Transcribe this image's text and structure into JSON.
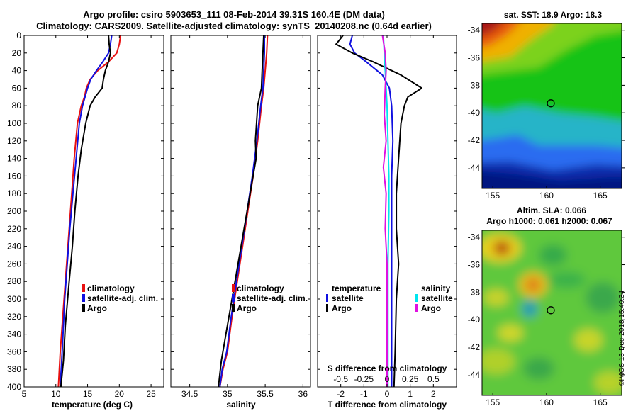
{
  "title_line1": "Argo profile: csiro 5903653_111 08-Feb-2014 39.31S 160.4E (DM data)",
  "title_line2": "Climatology: CARS2009. Satellite-adjusted climatology: synTS_20140208.nc (0.64d earlier)",
  "timestamp": "©IMOS 13-Dec-2018 15:40:34",
  "colors": {
    "climatology": "#e81010",
    "satellite": "#1010e0",
    "argo": "#000000",
    "satellite_s": "#00e5ee",
    "argo_s": "#e010e0"
  },
  "chart_data": [
    {
      "type": "line",
      "title": "",
      "xlabel": "temperature (deg C)",
      "ylabel": "",
      "xlim": [
        5,
        27
      ],
      "ylim": [
        400,
        0
      ],
      "xticks": [
        5,
        10,
        15,
        20,
        25
      ],
      "xtick_labels": [
        "5",
        "10",
        "15",
        "20",
        "25"
      ],
      "yticks": [
        0,
        20,
        40,
        60,
        80,
        100,
        120,
        140,
        160,
        180,
        200,
        220,
        240,
        260,
        280,
        300,
        320,
        340,
        360,
        380,
        400
      ],
      "legend": [
        "climatology",
        "satellite-adj. clim.",
        "Argo"
      ],
      "series": [
        {
          "name": "climatology",
          "x": [
            20.2,
            20.0,
            19.6,
            18.3,
            16.6,
            15.4,
            14.8,
            14.5,
            14.0,
            13.4,
            12.9,
            12.5,
            12.1,
            11.7,
            11.3,
            10.7,
            10.4
          ],
          "y": [
            0,
            10,
            20,
            30,
            40,
            50,
            60,
            70,
            80,
            100,
            140,
            180,
            220,
            260,
            300,
            360,
            400
          ]
        },
        {
          "name": "satellite-adj. clim.",
          "x": [
            18.8,
            18.6,
            18.3,
            17.4,
            16.4,
            15.5,
            15.0,
            14.6,
            14.2,
            13.7,
            13.2,
            12.7,
            12.2,
            11.8,
            11.4,
            11.0,
            10.7
          ],
          "y": [
            0,
            10,
            20,
            30,
            40,
            50,
            60,
            70,
            80,
            100,
            140,
            180,
            220,
            260,
            300,
            360,
            400
          ]
        },
        {
          "name": "Argo",
          "x": [
            18.3,
            18.4,
            18.6,
            18.3,
            17.8,
            17.5,
            17.3,
            16.2,
            15.4,
            14.7,
            14.0,
            13.5,
            13.0,
            12.6,
            12.1,
            11.5,
            11.2,
            10.8
          ],
          "y": [
            0,
            10,
            20,
            30,
            40,
            50,
            60,
            70,
            80,
            100,
            130,
            160,
            200,
            240,
            280,
            330,
            370,
            400
          ]
        }
      ]
    },
    {
      "type": "line",
      "title": "",
      "xlabel": "salinity",
      "ylabel": "",
      "xlim": [
        34.25,
        36.1
      ],
      "ylim": [
        400,
        0
      ],
      "xticks": [
        34.5,
        35,
        35.5,
        36
      ],
      "xtick_labels": [
        "34.5",
        "35",
        "35.5",
        "36"
      ],
      "legend": [
        "climatology",
        "satellite-adj. clim.",
        "Argo"
      ],
      "series": [
        {
          "name": "climatology",
          "x": [
            35.53,
            35.52,
            35.5,
            35.48,
            35.45,
            35.4,
            35.34,
            35.27,
            35.2,
            35.13,
            35.06,
            35.0,
            34.94,
            34.9
          ],
          "y": [
            0,
            20,
            40,
            60,
            80,
            120,
            160,
            200,
            240,
            280,
            320,
            360,
            380,
            400
          ]
        },
        {
          "name": "satellite-adj. clim.",
          "x": [
            35.49,
            35.49,
            35.48,
            35.47,
            35.44,
            35.39,
            35.33,
            35.26,
            35.19,
            35.12,
            35.05,
            34.99,
            34.93,
            34.9
          ],
          "y": [
            0,
            20,
            40,
            60,
            80,
            120,
            160,
            200,
            240,
            280,
            320,
            360,
            380,
            400
          ]
        },
        {
          "name": "Argo",
          "x": [
            35.48,
            35.47,
            35.46,
            35.45,
            35.4,
            35.37,
            35.38,
            35.3,
            35.22,
            35.14,
            35.06,
            34.98,
            34.92,
            34.88
          ],
          "y": [
            0,
            20,
            40,
            60,
            80,
            120,
            140,
            180,
            220,
            260,
            300,
            340,
            370,
            400
          ]
        }
      ]
    },
    {
      "type": "line",
      "title": "",
      "xlabel": "T difference from climatology",
      "xlabel_top": "S difference from climatology",
      "ylabel": "",
      "xlim": [
        -3,
        3
      ],
      "ylim": [
        400,
        0
      ],
      "xticks": [
        -2,
        -1,
        0,
        1,
        2
      ],
      "xtick_labels": [
        "-2",
        "-1",
        "0",
        "1",
        "2"
      ],
      "s_xlim": [
        -0.75,
        0.75
      ],
      "s_xticks": [
        -0.5,
        -0.25,
        0,
        0.25,
        0.5
      ],
      "s_xtick_labels": [
        "-0.5",
        "-0.25",
        "0",
        "0.25",
        "0.5"
      ],
      "legend_temperature_title": "temperature",
      "legend_salinity_title": "salinity",
      "legend": [
        "satellite",
        "Argo",
        "satellite",
        "Argo"
      ],
      "series": [
        {
          "name": "temperature satellite",
          "x": [
            -1.5,
            -1.6,
            -1.4,
            -0.9,
            -0.2,
            0.1,
            0.2,
            0.25,
            0.2,
            0.2,
            0.2,
            0.2,
            0.2,
            0.2
          ],
          "y": [
            0,
            10,
            20,
            30,
            45,
            60,
            80,
            120,
            160,
            200,
            240,
            300,
            360,
            400
          ]
        },
        {
          "name": "temperature Argo",
          "x": [
            -1.9,
            -2.2,
            -1.5,
            -0.6,
            0.6,
            1.5,
            0.9,
            0.75,
            0.6,
            0.5,
            0.4,
            0.4,
            0.5,
            0.4,
            0.35,
            0.3
          ],
          "y": [
            0,
            10,
            20,
            30,
            45,
            60,
            70,
            80,
            100,
            140,
            180,
            220,
            260,
            300,
            360,
            400
          ]
        },
        {
          "name": "salinity satellite",
          "x": [
            -0.04,
            -0.03,
            -0.02,
            -0.01,
            0.0,
            0.01,
            0.02,
            0.02,
            0.01,
            0.01,
            0.01
          ],
          "y": [
            0,
            20,
            40,
            60,
            80,
            120,
            160,
            200,
            260,
            330,
            400
          ]
        },
        {
          "name": "salinity Argo",
          "x": [
            -0.05,
            -0.02,
            -0.01,
            -0.02,
            -0.03,
            -0.01,
            -0.04,
            -0.01,
            -0.02,
            0.0,
            0.0,
            0.0
          ],
          "y": [
            0,
            20,
            40,
            60,
            90,
            120,
            150,
            180,
            220,
            260,
            320,
            400
          ]
        }
      ]
    },
    {
      "type": "heatmap",
      "title": "sat. SST: 18.9 Argo: 18.3",
      "xlim": [
        154,
        167
      ],
      "ylim": [
        -45.5,
        -33.5
      ],
      "xticks": [
        155,
        160,
        165
      ],
      "yticks": [
        -34,
        -36,
        -38,
        -40,
        -42,
        -44
      ],
      "xtick_labels": [
        "155",
        "160",
        "165"
      ],
      "ytick_labels": [
        "-34",
        "-36",
        "-38",
        "-40",
        "-42",
        "-44"
      ],
      "marker": {
        "lon": 160.4,
        "lat": -39.31
      }
    },
    {
      "type": "heatmap",
      "title": "Altim. SLA: 0.066",
      "subtitle": "Argo h1000: 0.061 h2000: 0.067",
      "xlim": [
        154,
        167
      ],
      "ylim": [
        -45.5,
        -33.5
      ],
      "xticks": [
        155,
        160,
        165
      ],
      "yticks": [
        -34,
        -36,
        -38,
        -40,
        -42,
        -44
      ],
      "xtick_labels": [
        "155",
        "160",
        "165"
      ],
      "ytick_labels": [
        "-34",
        "-36",
        "-38",
        "-40",
        "-42",
        "-44"
      ],
      "marker": {
        "lon": 160.4,
        "lat": -39.31
      }
    }
  ]
}
